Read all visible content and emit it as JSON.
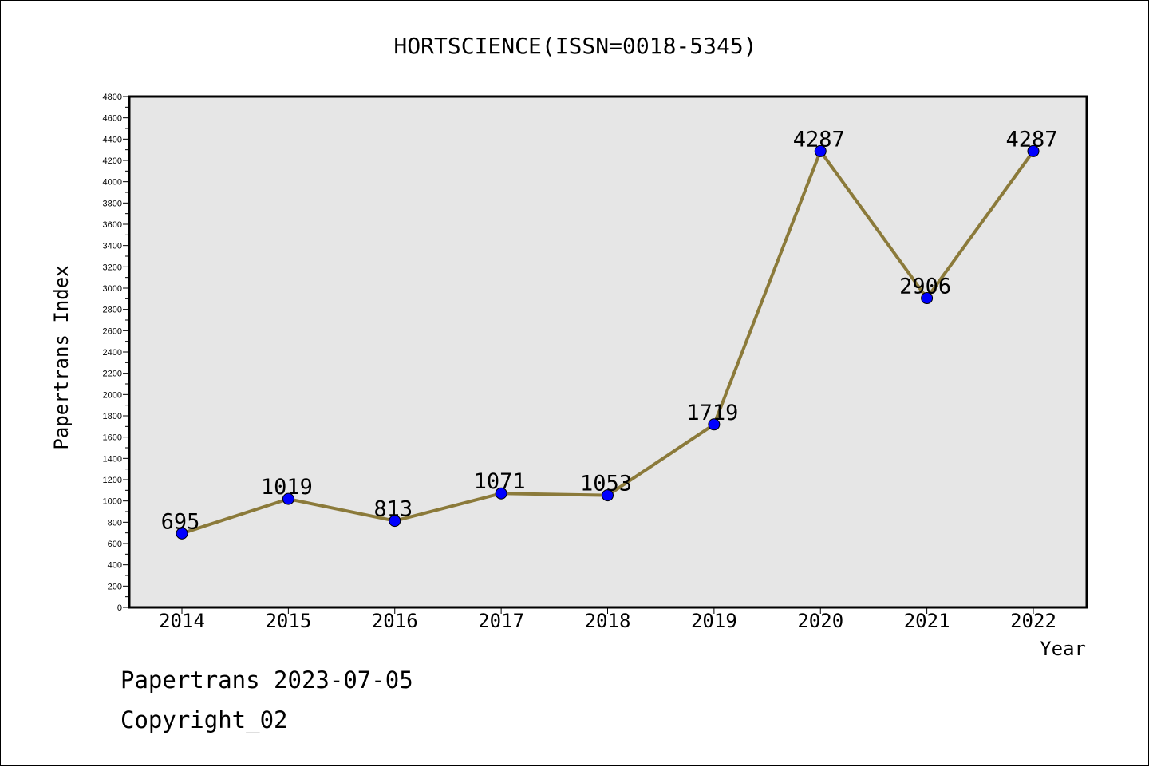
{
  "chart_data": {
    "type": "line",
    "title": "HORTSCIENCE(ISSN=0018-5345)",
    "xlabel": "Year",
    "ylabel": "Papertrans Index",
    "categories": [
      "2014",
      "2015",
      "2016",
      "2017",
      "2018",
      "2019",
      "2020",
      "2021",
      "2022"
    ],
    "series": [
      {
        "values": [
          695,
          1019,
          813,
          1071,
          1053,
          1719,
          4287,
          2906,
          4287
        ]
      }
    ],
    "ylim": [
      0,
      4800
    ],
    "ytick_step": 200,
    "grid": false,
    "line_color": "#8b7a3a",
    "marker_color": "#0000ff",
    "plot_background": "#e6e6e6"
  },
  "footer": {
    "date_text": "Papertrans 2023-07-05",
    "copyright_text": "Copyright_02"
  }
}
